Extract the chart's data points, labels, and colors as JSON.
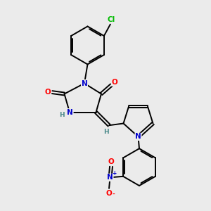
{
  "background_color": "#ebebeb",
  "colors": {
    "C": "#000000",
    "N": "#0000cc",
    "O": "#ff0000",
    "Cl": "#00bb00",
    "H": "#4a8a8a"
  },
  "lw": 1.4,
  "fs": 7.5
}
